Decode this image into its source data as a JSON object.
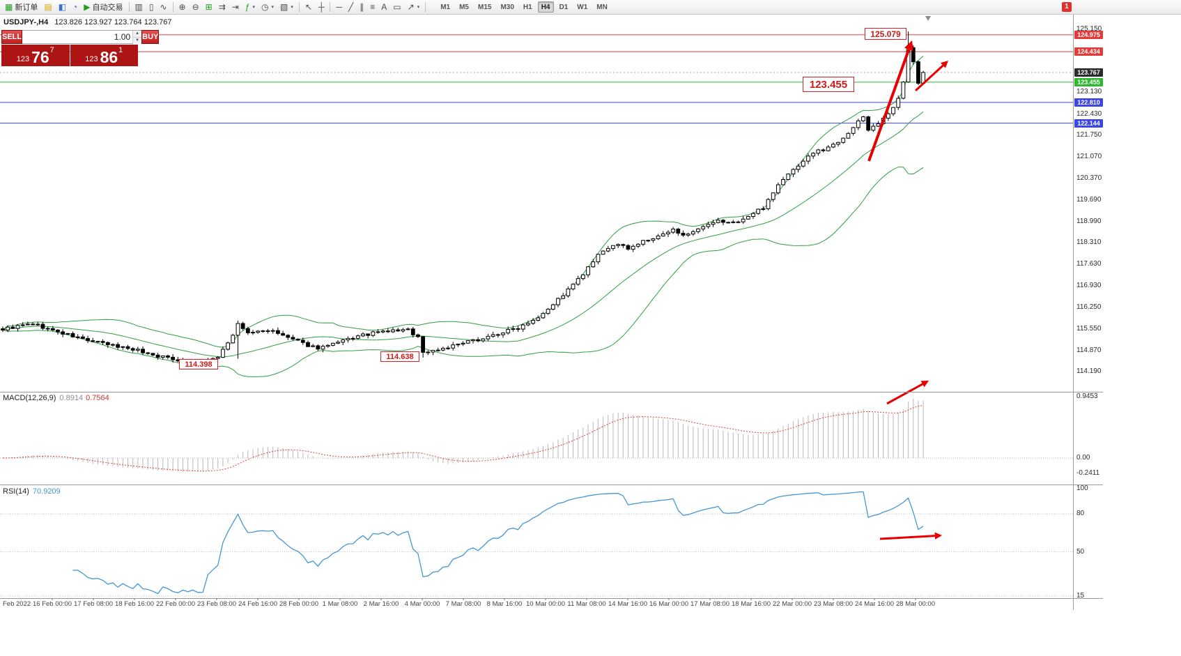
{
  "toolbar": {
    "items": [
      {
        "type": "button",
        "name": "new-order-button",
        "glyph": "▦",
        "glyph_color": "#1f9d1f",
        "label": "新订单"
      },
      {
        "type": "button",
        "name": "chart-window-button",
        "glyph": "▤",
        "glyph_color": "#d7a500"
      },
      {
        "type": "button",
        "name": "profiles-button",
        "glyph": "◧",
        "glyph_color": "#3a6fd8"
      },
      {
        "type": "button",
        "name": "data-window-button",
        "glyph": "◔",
        "glyph_color": "#7a4fd8"
      },
      {
        "type": "button",
        "name": "auto-trading-button",
        "glyph": "▶",
        "glyph_color": "#1f9d1f",
        "label": "自动交易"
      },
      {
        "type": "sep"
      },
      {
        "type": "button",
        "name": "bar-chart-button",
        "glyph": "▥"
      },
      {
        "type": "button",
        "name": "candlestick-chart-button",
        "glyph": "▯"
      },
      {
        "type": "button",
        "name": "line-chart-button",
        "glyph": "∿"
      },
      {
        "type": "sep"
      },
      {
        "type": "button",
        "name": "zoom-in-button",
        "glyph": "⊕"
      },
      {
        "type": "button",
        "name": "zoom-out-button",
        "glyph": "⊖"
      },
      {
        "type": "button",
        "name": "tile-windows-button",
        "glyph": "⊞",
        "glyph_color": "#1f9d1f"
      },
      {
        "type": "button",
        "name": "auto-scroll-button",
        "glyph": "⇉"
      },
      {
        "type": "button",
        "name": "chart-shift-button",
        "glyph": "⇥"
      },
      {
        "type": "button",
        "name": "indicators-button",
        "glyph": "ƒ",
        "glyph_color": "#1f9d1f",
        "dropdown": true
      },
      {
        "type": "button",
        "name": "periods-button",
        "glyph": "◷",
        "dropdown": true
      },
      {
        "type": "button",
        "name": "templates-button",
        "glyph": "▧",
        "dropdown": true
      },
      {
        "type": "sep"
      },
      {
        "type": "button",
        "name": "cursor-button",
        "glyph": "↖"
      },
      {
        "type": "button",
        "name": "crosshair-button",
        "glyph": "┼"
      },
      {
        "type": "sep"
      },
      {
        "type": "button",
        "name": "horizontal-line-button",
        "glyph": "─"
      },
      {
        "type": "button",
        "name": "trendline-button",
        "glyph": "╱"
      },
      {
        "type": "button",
        "name": "equidistant-channel-button",
        "glyph": "∥"
      },
      {
        "type": "button",
        "name": "fibonacci-button",
        "glyph": "≡"
      },
      {
        "type": "button",
        "name": "text-button",
        "glyph": "A"
      },
      {
        "type": "button",
        "name": "text-label-button",
        "glyph": "▭"
      },
      {
        "type": "button",
        "name": "arrows-tool-button",
        "glyph": "↗",
        "dropdown": true
      },
      {
        "type": "sep"
      }
    ],
    "timeframes": [
      "M1",
      "M5",
      "M15",
      "M30",
      "H1",
      "H4",
      "D1",
      "W1",
      "MN"
    ],
    "active_timeframe": "H4",
    "badge": "1"
  },
  "quote_header": {
    "symbol_tf": "USDJPY-,H4",
    "ohlc": "123.826 123.927 123.764 123.767"
  },
  "trade_panel": {
    "sell_label": "SELL",
    "buy_label": "BUY",
    "volume": "1.00",
    "sell_price": {
      "big": "123",
      "mid": "76",
      "sup": "7"
    },
    "buy_price": {
      "big": "123",
      "mid": "86",
      "sup": "1"
    }
  },
  "price_axis": {
    "ticks": [
      "125.150",
      "123.130",
      "122.430",
      "121.750",
      "121.070",
      "120.370",
      "119.690",
      "118.990",
      "118.310",
      "117.630",
      "116.930",
      "116.250",
      "115.550",
      "114.870",
      "114.190"
    ],
    "tags": [
      {
        "label": "124.975",
        "value": 124.975,
        "bg": "#e23b3b"
      },
      {
        "label": "124.434",
        "value": 124.434,
        "bg": "#e23b3b"
      },
      {
        "label": "123.767",
        "value": 123.767,
        "bg": "#2b2b2b"
      },
      {
        "label": "123.455",
        "value": 123.455,
        "bg": "#2db82d"
      },
      {
        "label": "122.810",
        "value": 122.81,
        "bg": "#3c46e8"
      },
      {
        "label": "122.144",
        "value": 122.144,
        "bg": "#3c46e8"
      }
    ]
  },
  "levels": [
    {
      "value": 124.975,
      "color": "#e23b3b",
      "dash": false
    },
    {
      "value": 124.434,
      "color": "#e23b3b",
      "dash": false
    },
    {
      "value": 123.767,
      "color": "#aaaaaa",
      "dash": true
    },
    {
      "value": 123.455,
      "color": "#2db82d",
      "dash": false
    },
    {
      "value": 122.81,
      "color": "#3c46e8",
      "dash": false
    },
    {
      "value": 122.144,
      "color": "#3c46e8",
      "dash": false
    }
  ],
  "annotations": {
    "high_label": "125.079",
    "level_label": "123.455",
    "low_label_1": "114.398",
    "low_label_2": "114.638",
    "arrow_color": "#e80000"
  },
  "macd": {
    "title": "MACD(12,26,9)",
    "value1": "0.8914",
    "value2": "0.7564",
    "axis": [
      {
        "label": "0.9453",
        "value": 0.9453
      },
      {
        "label": "0.00",
        "value": 0
      },
      {
        "label": "-0.2411",
        "value": -0.2411
      }
    ]
  },
  "rsi": {
    "title": "RSI(14)",
    "value": "70.9209",
    "axis": [
      {
        "label": "100",
        "value": 100
      },
      {
        "label": "80",
        "value": 80
      },
      {
        "label": "50",
        "value": 50
      },
      {
        "label": "15",
        "value": 15
      }
    ],
    "levels": [
      80,
      50,
      15
    ]
  },
  "time_axis": {
    "labels": [
      "Feb 2022",
      "16 Feb 00:00",
      "17 Feb 08:00",
      "18 Feb 16:00",
      "22 Feb 00:00",
      "23 Feb 08:00",
      "24 Feb 16:00",
      "28 Feb 00:00",
      "1 Mar 08:00",
      "2 Mar 16:00",
      "4 Mar 00:00",
      "7 Mar 08:00",
      "8 Mar 16:00",
      "10 Mar 00:00",
      "11 Mar 08:00",
      "14 Mar 16:00",
      "16 Mar 00:00",
      "17 Mar 08:00",
      "18 Mar 16:00",
      "22 Mar 00:00",
      "23 Mar 08:00",
      "24 Mar 16:00",
      "28 Mar 00:00"
    ]
  },
  "chart_data": {
    "type": "candlestick",
    "symbol": "USDJPY",
    "timeframe": "H4",
    "bars": 185,
    "last_close": 123.767,
    "visible_price_range": [
      114.19,
      125.15
    ],
    "marked_high": 125.079,
    "marked_lows": [
      114.398,
      114.638
    ],
    "close_anchors": [
      [
        0,
        115.55
      ],
      [
        6,
        115.72
      ],
      [
        10,
        115.5
      ],
      [
        14,
        115.32
      ],
      [
        18,
        115.15
      ],
      [
        22,
        115.02
      ],
      [
        26,
        114.92
      ],
      [
        30,
        114.72
      ],
      [
        34,
        114.6
      ],
      [
        38,
        114.5
      ],
      [
        40,
        114.45
      ],
      [
        43,
        114.68
      ],
      [
        46,
        115.35
      ],
      [
        47,
        115.7
      ],
      [
        49,
        115.42
      ],
      [
        53,
        115.52
      ],
      [
        57,
        115.28
      ],
      [
        60,
        115.08
      ],
      [
        63,
        114.95
      ],
      [
        66,
        115.05
      ],
      [
        70,
        115.28
      ],
      [
        74,
        115.42
      ],
      [
        78,
        115.5
      ],
      [
        81,
        115.52
      ],
      [
        83,
        115.3
      ],
      [
        84,
        114.8
      ],
      [
        87,
        114.9
      ],
      [
        91,
        115.05
      ],
      [
        95,
        115.22
      ],
      [
        99,
        115.4
      ],
      [
        103,
        115.6
      ],
      [
        107,
        115.95
      ],
      [
        110,
        116.35
      ],
      [
        113,
        116.8
      ],
      [
        116,
        117.3
      ],
      [
        119,
        117.9
      ],
      [
        122,
        118.25
      ],
      [
        125,
        118.15
      ],
      [
        128,
        118.35
      ],
      [
        131,
        118.5
      ],
      [
        134,
        118.72
      ],
      [
        137,
        118.55
      ],
      [
        140,
        118.8
      ],
      [
        143,
        119.0
      ],
      [
        146,
        118.95
      ],
      [
        149,
        119.15
      ],
      [
        152,
        119.45
      ],
      [
        154,
        119.95
      ],
      [
        156,
        120.35
      ],
      [
        158,
        120.65
      ],
      [
        160,
        120.95
      ],
      [
        162,
        121.2
      ],
      [
        164,
        121.3
      ],
      [
        166,
        121.45
      ],
      [
        168,
        121.7
      ],
      [
        170,
        122.0
      ],
      [
        172,
        122.35
      ],
      [
        173,
        121.95
      ],
      [
        175,
        122.15
      ],
      [
        177,
        122.4
      ],
      [
        179,
        122.9
      ],
      [
        180,
        123.45
      ],
      [
        181,
        124.6
      ],
      [
        182,
        124.15
      ],
      [
        183,
        123.45
      ],
      [
        184,
        123.767
      ]
    ],
    "overrides": [
      {
        "index": 40,
        "low": 114.398
      },
      {
        "index": 47,
        "low": 114.6,
        "high": 115.82
      },
      {
        "index": 84,
        "low": 114.638
      },
      {
        "index": 181,
        "high": 125.079
      }
    ],
    "indicators": {
      "bollinger": {
        "period": 20,
        "deviation": 2,
        "color": "#2f9e44"
      },
      "macd": {
        "fast": 12,
        "slow": 26,
        "signal": 9,
        "last_main": 0.8914,
        "last_signal": 0.7564,
        "axis_max": 0.9453,
        "axis_min": -0.2411,
        "histogram_color": "#b8b8b8",
        "signal_color": "#e04040"
      },
      "rsi": {
        "period": 14,
        "last": 70.9209,
        "color": "#4596d2"
      }
    }
  }
}
